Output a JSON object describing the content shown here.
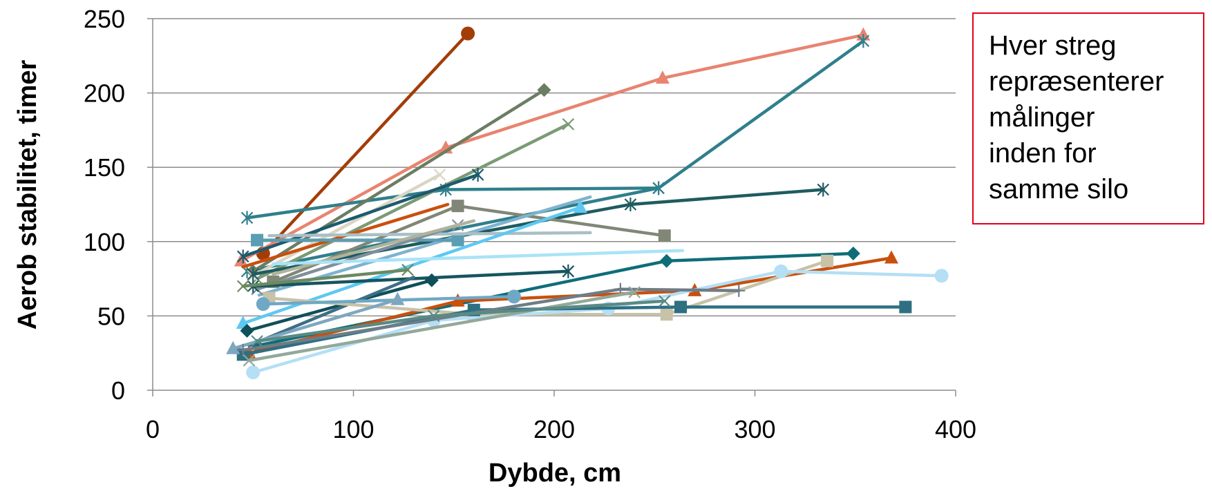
{
  "chart_data": {
    "type": "line",
    "xlabel": "Dybde, cm",
    "ylabel": "Aerob stabilitet, timer",
    "xlim": [
      0,
      400
    ],
    "ylim": [
      0,
      250
    ],
    "x_ticks": [
      "0",
      "100",
      "200",
      "300",
      "400"
    ],
    "y_ticks": [
      "0",
      "50",
      "100",
      "150",
      "200",
      "250"
    ],
    "grid": "horizontal",
    "annotation_lines": [
      "Hver streg",
      "repræsenterer",
      "målinger",
      "inden for",
      "samme silo"
    ],
    "series": [
      {
        "color": "#a33d08",
        "marker": "circle",
        "x": [
          55,
          157
        ],
        "y": [
          92,
          240
        ]
      },
      {
        "color": "#e8846f",
        "marker": "triangle",
        "x": [
          44,
          146,
          254,
          354
        ],
        "y": [
          87,
          163,
          210,
          239
        ]
      },
      {
        "color": "#2f7f8c",
        "marker": "star",
        "x": [
          47,
          252,
          354
        ],
        "y": [
          80,
          136,
          235
        ]
      },
      {
        "color": "#2f7f8c",
        "marker": "star",
        "x": [
          47,
          146,
          252
        ],
        "y": [
          116,
          135,
          136
        ]
      },
      {
        "color": "#6b7d63",
        "marker": "diamond",
        "x": [
          50,
          195
        ],
        "y": [
          80,
          202
        ]
      },
      {
        "color": "#7b9b74",
        "marker": "x",
        "x": [
          52,
          207
        ],
        "y": [
          75,
          179
        ]
      },
      {
        "color": "#d9d6c4",
        "marker": "x",
        "x": [
          50,
          143
        ],
        "y": [
          77,
          145
        ]
      },
      {
        "color": "#1d5a6e",
        "marker": "star",
        "x": [
          45,
          162
        ],
        "y": [
          90,
          145
        ]
      },
      {
        "color": "#1f5b60",
        "marker": "star",
        "x": [
          50,
          238,
          334
        ],
        "y": [
          78,
          125,
          135
        ]
      },
      {
        "color": "#c9500e",
        "marker": "none",
        "x": [
          45,
          147
        ],
        "y": [
          83,
          125
        ]
      },
      {
        "color": "#808776",
        "marker": "square",
        "x": [
          60,
          152,
          255
        ],
        "y": [
          73,
          124,
          104
        ]
      },
      {
        "color": "#7fb3cf",
        "marker": "none",
        "x": [
          53,
          218
        ],
        "y": [
          64,
          130
        ]
      },
      {
        "color": "#5b9db3",
        "marker": "square",
        "x": [
          52,
          152
        ],
        "y": [
          101,
          101
        ]
      },
      {
        "color": "#a9bfc6",
        "marker": "none",
        "x": [
          58,
          218
        ],
        "y": [
          104,
          106
        ]
      },
      {
        "color": "#7f8f9b",
        "marker": "x",
        "x": [
          52,
          152
        ],
        "y": [
          68,
          111
        ]
      },
      {
        "color": "#aeb39c",
        "marker": "none",
        "x": [
          60,
          160
        ],
        "y": [
          78,
          114
        ]
      },
      {
        "color": "#5dc8f2",
        "marker": "triangle",
        "x": [
          45,
          213
        ],
        "y": [
          45,
          123
        ]
      },
      {
        "color": "#a9e3f8",
        "marker": "none",
        "x": [
          60,
          264
        ],
        "y": [
          85,
          94
        ]
      },
      {
        "color": "#16555f",
        "marker": "star",
        "x": [
          50,
          207
        ],
        "y": [
          70,
          80
        ]
      },
      {
        "color": "#6b8a5e",
        "marker": "x",
        "x": [
          45,
          127
        ],
        "y": [
          70,
          81
        ]
      },
      {
        "color": "#0f4f5a",
        "marker": "diamond",
        "x": [
          47,
          139
        ],
        "y": [
          40,
          74
        ]
      },
      {
        "color": "#3d6f86",
        "marker": "none",
        "x": [
          48,
          130
        ],
        "y": [
          30,
          76
        ]
      },
      {
        "color": "#0f6d78",
        "marker": "diamond",
        "x": [
          52,
          256,
          349
        ],
        "y": [
          30,
          87,
          92
        ]
      },
      {
        "color": "#c9500e",
        "marker": "triangle",
        "x": [
          48,
          152,
          270,
          368
        ],
        "y": [
          25,
          60,
          67,
          89
        ]
      },
      {
        "color": "#c7c2a8",
        "marker": "square",
        "x": [
          58,
          160,
          256,
          336
        ],
        "y": [
          62,
          51,
          51,
          87
        ]
      },
      {
        "color": "#b4dff5",
        "marker": "circle",
        "x": [
          50,
          140,
          227,
          313,
          393
        ],
        "y": [
          12,
          47,
          55,
          80,
          77
        ]
      },
      {
        "color": "#2e6f82",
        "marker": "square",
        "x": [
          45,
          160,
          263,
          375
        ],
        "y": [
          24,
          54,
          56,
          56
        ]
      },
      {
        "color": "#6fa8c4",
        "marker": "circle",
        "x": [
          55,
          180
        ],
        "y": [
          58,
          63
        ]
      },
      {
        "color": "#7ea7bf",
        "marker": "triangle",
        "x": [
          40,
          122
        ],
        "y": [
          28,
          61
        ]
      },
      {
        "color": "#6d7d88",
        "marker": "plus",
        "x": [
          45,
          233,
          292
        ],
        "y": [
          27,
          68,
          67
        ]
      },
      {
        "color": "#93a89a",
        "marker": "x",
        "x": [
          48,
          240
        ],
        "y": [
          20,
          66
        ]
      },
      {
        "color": "#5a8a84",
        "marker": "x",
        "x": [
          52,
          140,
          255
        ],
        "y": [
          33,
          50,
          60
        ]
      }
    ]
  }
}
